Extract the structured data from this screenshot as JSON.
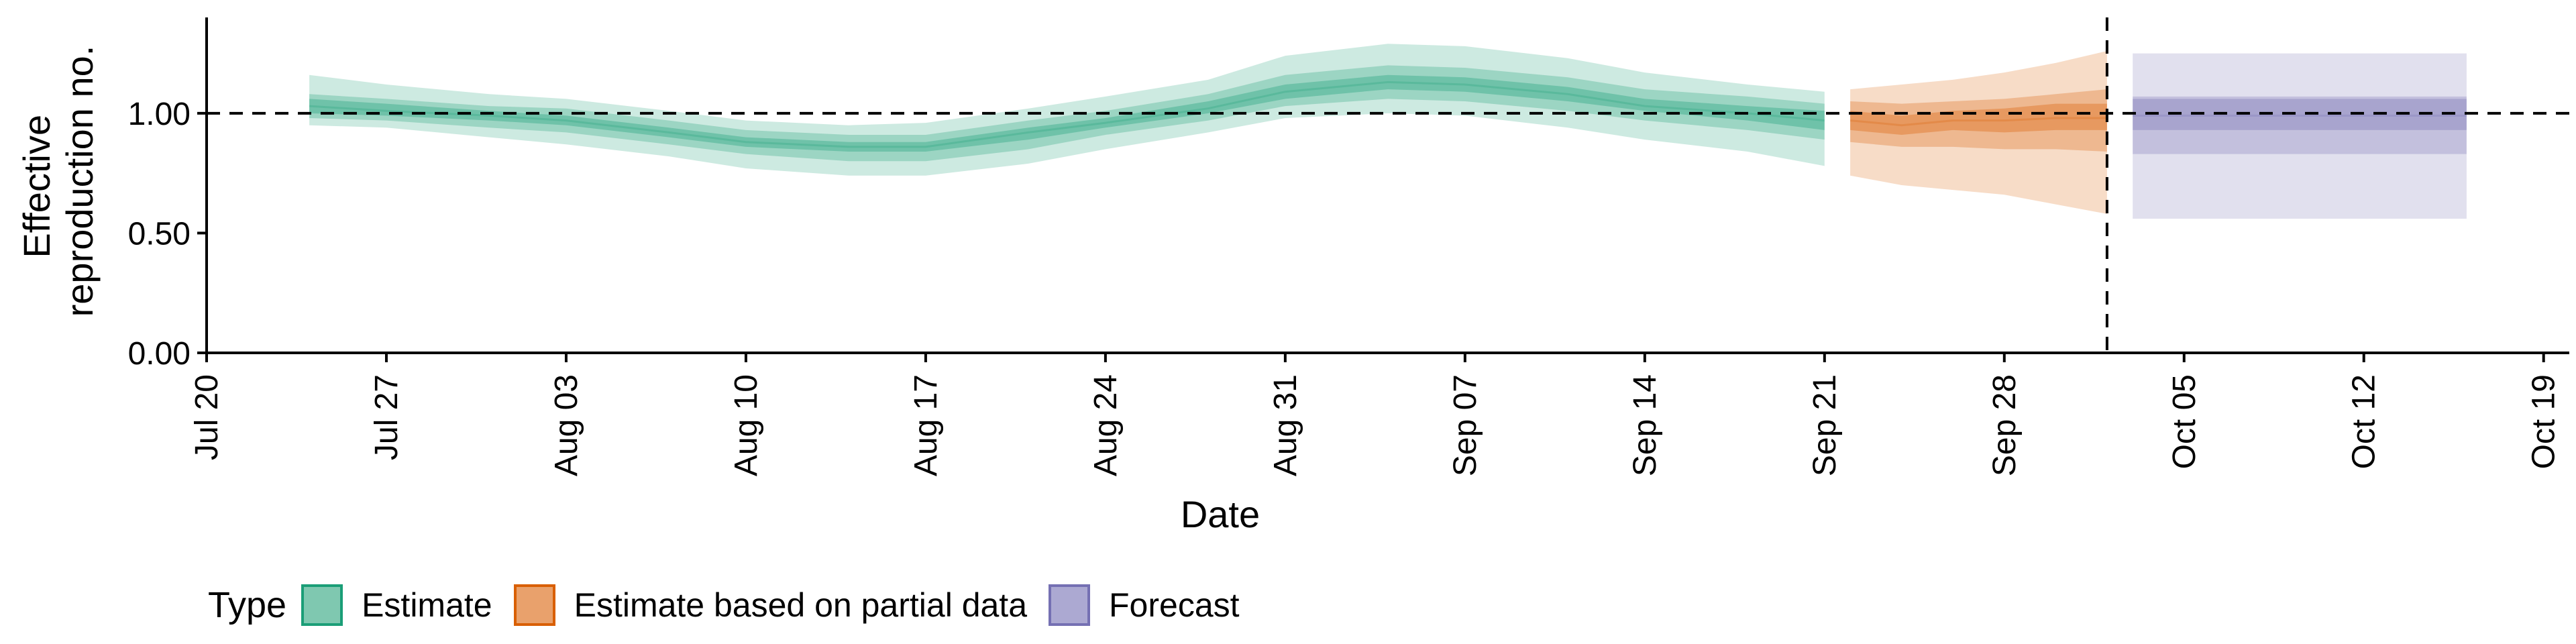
{
  "chart_data": {
    "type": "area",
    "xlabel": "Date",
    "ylabel": [
      "Effective",
      "reproduction no."
    ],
    "x_ticks": [
      "2020-07-20",
      "2020-07-27",
      "2020-08-03",
      "2020-08-10",
      "2020-08-17",
      "2020-08-24",
      "2020-08-31",
      "2020-09-07",
      "2020-09-14",
      "2020-09-21",
      "2020-09-28",
      "2020-10-05",
      "2020-10-12",
      "2020-10-19"
    ],
    "x_tick_labels": [
      "Jul 20",
      "Jul 27",
      "Aug 03",
      "Aug 10",
      "Aug 17",
      "Aug 24",
      "Aug 31",
      "Sep 07",
      "Sep 14",
      "Sep 21",
      "Sep 28",
      "Oct 05",
      "Oct 12",
      "Oct 19"
    ],
    "xlim": [
      "2020-07-20",
      "2020-10-20"
    ],
    "y_ticks": [
      0,
      0.5,
      1,
      1.5
    ],
    "y_tick_labels": [
      "0.00",
      "0.50",
      "1.00",
      ""
    ],
    "ylim": [
      0,
      1.4
    ],
    "reference_hline": 1.0,
    "reference_vline": "2020-10-02",
    "grid": false,
    "legend": {
      "title": "Type",
      "position": "bottom-left"
    },
    "series": [
      {
        "name": "Estimate",
        "color": "#1b9e77",
        "dates": [
          "2020-07-24",
          "2020-07-27",
          "2020-07-31",
          "2020-08-03",
          "2020-08-07",
          "2020-08-10",
          "2020-08-14",
          "2020-08-17",
          "2020-08-21",
          "2020-08-24",
          "2020-08-28",
          "2020-08-31",
          "2020-09-04",
          "2020-09-07",
          "2020-09-11",
          "2020-09-14",
          "2020-09-18",
          "2020-09-21"
        ],
        "median": [
          1.03,
          1.01,
          0.99,
          0.97,
          0.92,
          0.88,
          0.86,
          0.86,
          0.92,
          0.96,
          1.02,
          1.09,
          1.13,
          1.12,
          1.08,
          1.03,
          1.0,
          0.97
        ],
        "lower_20": [
          1.0,
          0.99,
          0.97,
          0.95,
          0.9,
          0.86,
          0.84,
          0.84,
          0.89,
          0.94,
          1.0,
          1.06,
          1.1,
          1.09,
          1.05,
          1.01,
          0.97,
          0.93
        ],
        "upper_20": [
          1.06,
          1.04,
          1.01,
          0.99,
          0.94,
          0.9,
          0.88,
          0.88,
          0.94,
          0.98,
          1.05,
          1.12,
          1.16,
          1.15,
          1.11,
          1.06,
          1.03,
          1.01
        ],
        "lower_50": [
          0.98,
          0.97,
          0.94,
          0.92,
          0.87,
          0.83,
          0.8,
          0.8,
          0.85,
          0.91,
          0.97,
          1.03,
          1.06,
          1.05,
          1.01,
          0.97,
          0.93,
          0.89
        ],
        "upper_50": [
          1.08,
          1.06,
          1.03,
          1.02,
          0.97,
          0.93,
          0.91,
          0.91,
          0.97,
          1.01,
          1.08,
          1.16,
          1.2,
          1.19,
          1.15,
          1.1,
          1.07,
          1.04
        ],
        "lower_90": [
          0.95,
          0.94,
          0.9,
          0.87,
          0.82,
          0.77,
          0.74,
          0.74,
          0.79,
          0.85,
          0.92,
          0.98,
          1.0,
          0.99,
          0.94,
          0.89,
          0.84,
          0.78
        ],
        "upper_90": [
          1.16,
          1.12,
          1.08,
          1.06,
          1.01,
          0.97,
          0.95,
          0.96,
          1.02,
          1.07,
          1.14,
          1.24,
          1.29,
          1.28,
          1.23,
          1.17,
          1.12,
          1.09
        ]
      },
      {
        "name": "Estimate based on partial data",
        "color": "#d95f02",
        "dates": [
          "2020-09-22",
          "2020-09-24",
          "2020-09-26",
          "2020-09-28",
          "2020-09-30",
          "2020-10-02"
        ],
        "median": [
          0.97,
          0.95,
          0.97,
          0.97,
          0.98,
          0.98
        ],
        "lower_20": [
          0.93,
          0.91,
          0.93,
          0.92,
          0.93,
          0.93
        ],
        "upper_20": [
          1.01,
          0.99,
          1.01,
          1.02,
          1.04,
          1.04
        ],
        "lower_50": [
          0.88,
          0.86,
          0.86,
          0.85,
          0.85,
          0.84
        ],
        "upper_50": [
          1.05,
          1.04,
          1.05,
          1.06,
          1.08,
          1.1
        ],
        "lower_90": [
          0.74,
          0.7,
          0.68,
          0.66,
          0.62,
          0.58
        ],
        "upper_90": [
          1.1,
          1.12,
          1.14,
          1.17,
          1.21,
          1.26
        ]
      },
      {
        "name": "Forecast",
        "color": "#7570b3",
        "dates": [
          "2020-10-03",
          "2020-10-16"
        ],
        "median": [
          0.99,
          0.99
        ],
        "lower_20": [
          0.93,
          0.93
        ],
        "upper_20": [
          1.06,
          1.06
        ],
        "lower_50": [
          0.83,
          0.83
        ],
        "upper_50": [
          1.07,
          1.07
        ],
        "lower_90": [
          0.56,
          0.56
        ],
        "upper_90": [
          1.25,
          1.25
        ]
      }
    ]
  }
}
